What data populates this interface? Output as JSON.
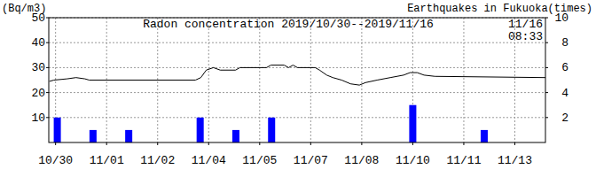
{
  "chart_data": {
    "type": "line",
    "title": "Radon concentration 2019/10/30--2019/11/16",
    "y_label": "(Bq/m3)",
    "y2_label": "Earthquakes in Fukuoka(times)",
    "annotations": [
      "11/16",
      "08:33"
    ],
    "xlim": [
      -0.2,
      14.4
    ],
    "xticks": [
      {
        "value": 0,
        "label": "10/30"
      },
      {
        "value": 1.5,
        "label": "11/01"
      },
      {
        "value": 3,
        "label": "11/02"
      },
      {
        "value": 4.5,
        "label": "11/04"
      },
      {
        "value": 6,
        "label": "11/05"
      },
      {
        "value": 7.5,
        "label": "11/07"
      },
      {
        "value": 9,
        "label": "11/08"
      },
      {
        "value": 10.5,
        "label": "11/10"
      },
      {
        "value": 12,
        "label": "11/11"
      },
      {
        "value": 13.5,
        "label": "11/13"
      }
    ],
    "ylim": [
      0,
      50
    ],
    "yticks": [
      10,
      20,
      30,
      40,
      50
    ],
    "y2lim": [
      0,
      10
    ],
    "y2ticks": [
      2,
      4,
      6,
      8,
      10
    ],
    "grid": true,
    "series": [
      {
        "type": "line",
        "color": "#000000",
        "x": [
          -0.18,
          -0.05,
          0.34,
          0.6,
          0.86,
          0.99,
          4.11,
          4.27,
          4.43,
          4.64,
          4.84,
          5.29,
          5.42,
          6.2,
          6.33,
          6.72,
          6.85,
          6.98,
          7.11,
          7.63,
          7.76,
          7.97,
          8.15,
          8.41,
          8.67,
          8.93,
          9.11,
          9.45,
          9.84,
          10.23,
          10.42,
          10.63,
          10.83,
          11.15,
          14.4
        ],
        "values": [
          24.5,
          25,
          25.5,
          26,
          25.5,
          25,
          25,
          26,
          29,
          30,
          29,
          29,
          30,
          30,
          31,
          31,
          30,
          31,
          30,
          30,
          29,
          27,
          26,
          25,
          23.5,
          23,
          24,
          25,
          26,
          27,
          28,
          28,
          27,
          26.5,
          26
        ]
      },
      {
        "type": "bar",
        "axis": "y2",
        "color": "#0000ff",
        "x": [
          0.05,
          1.1,
          2.15,
          4.25,
          5.3,
          6.35,
          10.5,
          12.6
        ],
        "values": [
          2,
          1,
          1,
          2,
          1,
          2,
          3,
          1
        ]
      }
    ]
  }
}
